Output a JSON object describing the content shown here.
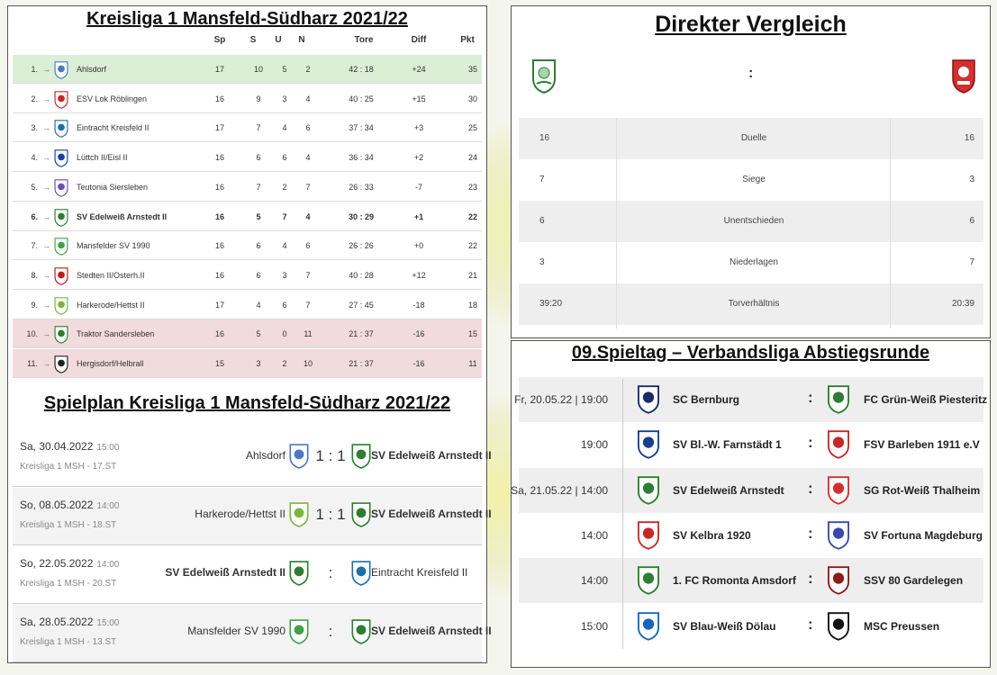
{
  "colors": {
    "promotion_row": "#dbeed6",
    "relegation_row": "#f2dbdd",
    "edelweiss_green": "#2e7d32",
    "thalheim_red": "#d32f2f"
  },
  "league": {
    "title": "Kreisliga 1 Mansfeld-Südharz 2021/22",
    "headers": {
      "sp": "Sp",
      "s": "S",
      "u": "U",
      "n": "N",
      "tore": "Tore",
      "diff": "Diff",
      "pkt": "Pkt"
    },
    "arrow": "→",
    "rows": [
      {
        "pos": "1.",
        "team": "Ahlsdorf",
        "sp": "17",
        "s": "10",
        "u": "5",
        "n": "2",
        "tore": "42 : 18",
        "diff": "+24",
        "pkt": "35",
        "logo": "ahlsdorf-logo",
        "color": "#4a78c2"
      },
      {
        "pos": "2.",
        "team": "ESV Lok Röblingen",
        "sp": "16",
        "s": "9",
        "u": "3",
        "n": "4",
        "tore": "40 : 25",
        "diff": "+15",
        "pkt": "30",
        "logo": "roeblingen-logo",
        "color": "#c62828"
      },
      {
        "pos": "3.",
        "team": "Eintracht Kreisfeld II",
        "sp": "17",
        "s": "7",
        "u": "4",
        "n": "6",
        "tore": "37 : 34",
        "diff": "+3",
        "pkt": "25",
        "logo": "kreisfeld-logo",
        "color": "#1e6fa8"
      },
      {
        "pos": "4.",
        "team": "Lüttch II/Eisl II",
        "sp": "16",
        "s": "6",
        "u": "6",
        "n": "4",
        "tore": "36 : 34",
        "diff": "+2",
        "pkt": "24",
        "logo": "luettch-logo",
        "color": "#1a3fa0"
      },
      {
        "pos": "5.",
        "team": "Teutonia Siersleben",
        "sp": "16",
        "s": "7",
        "u": "2",
        "n": "7",
        "tore": "26 : 33",
        "diff": "-7",
        "pkt": "23",
        "logo": "siersleben-logo",
        "color": "#6a4fb3"
      },
      {
        "pos": "6.",
        "team": "SV Edelweiß Arnstedt II",
        "sp": "16",
        "s": "5",
        "u": "7",
        "n": "4",
        "tore": "30 : 29",
        "diff": "+1",
        "pkt": "22",
        "logo": "edelweiss-logo",
        "color": "#2e7d32"
      },
      {
        "pos": "7.",
        "team": "Mansfelder SV 1990",
        "sp": "16",
        "s": "6",
        "u": "4",
        "n": "6",
        "tore": "26 : 26",
        "diff": "+0",
        "pkt": "22",
        "logo": "mansfelder-logo",
        "color": "#43a047"
      },
      {
        "pos": "8.",
        "team": "Stedten II/Osterh.II",
        "sp": "16",
        "s": "6",
        "u": "3",
        "n": "7",
        "tore": "40 : 28",
        "diff": "+12",
        "pkt": "21",
        "logo": "stedten-logo",
        "color": "#b71c1c"
      },
      {
        "pos": "9.",
        "team": "Harkerode/Hettst II",
        "sp": "17",
        "s": "4",
        "u": "6",
        "n": "7",
        "tore": "27 : 45",
        "diff": "-18",
        "pkt": "18",
        "logo": "harkerode-logo",
        "color": "#7cb342"
      },
      {
        "pos": "10.",
        "team": "Traktor Sandersleben",
        "sp": "16",
        "s": "5",
        "u": "0",
        "n": "11",
        "tore": "21 : 37",
        "diff": "-16",
        "pkt": "15",
        "logo": "sandersleben-logo",
        "color": "#2e7d32"
      },
      {
        "pos": "11.",
        "team": "Hergisdorf/Helbrall",
        "sp": "15",
        "s": "3",
        "u": "2",
        "n": "10",
        "tore": "21 : 37",
        "diff": "-16",
        "pkt": "11",
        "logo": "hergisdorf-logo",
        "color": "#222222"
      }
    ]
  },
  "schedule": {
    "title": "Spielplan Kreisliga 1 Mansfeld-Südharz 2021/22",
    "matches": [
      {
        "date": "Sa, 30.04.2022",
        "time": "15:00",
        "comp": "Kreisliga 1 MSH - 17.ST",
        "home": "Ahlsdorf",
        "score": "1 : 1",
        "away": "SV Edelweiß Arnstedt II",
        "home_color": "#4a78c2",
        "away_color": "#2e7d32"
      },
      {
        "date": "So, 08.05.2022",
        "time": "14:00",
        "comp": "Kreisliga 1 MSH - 18.ST",
        "home": "Harkerode/Hettst II",
        "score": "1 : 1",
        "away": "SV Edelweiß Arnstedt II",
        "home_color": "#7cb342",
        "away_color": "#2e7d32"
      },
      {
        "date": "So, 22.05.2022",
        "time": "14:00",
        "comp": "Kreisliga 1 MSH - 20.ST",
        "home": "SV Edelweiß Arnstedt II",
        "score": ":",
        "away": "Eintracht Kreisfeld II",
        "home_color": "#2e7d32",
        "away_color": "#1e6fa8"
      },
      {
        "date": "Sa, 28.05.2022",
        "time": "15:00",
        "comp": "Kreisliga 1 MSH - 13.ST",
        "home": "Mansfelder SV 1990",
        "score": ":",
        "away": "SV Edelweiß Arnstedt II",
        "home_color": "#43a047",
        "away_color": "#2e7d32"
      }
    ]
  },
  "direct": {
    "title": "Direkter Vergleich",
    "colon": ":",
    "home_crest": "edelweiss-crest",
    "away_crest": "thalheim-crest",
    "rows": [
      {
        "left": "16",
        "label": "Duelle",
        "right": "16"
      },
      {
        "left": "7",
        "label": "Siege",
        "right": "3"
      },
      {
        "left": "6",
        "label": "Unentschieden",
        "right": "6"
      },
      {
        "left": "3",
        "label": "Niederlagen",
        "right": "7"
      },
      {
        "left": "39:20",
        "label": "Torverhältnis",
        "right": "20:39"
      }
    ]
  },
  "matchday": {
    "title": "09.Spieltag – Verbandsliga Abstiegsrunde",
    "colon": ":",
    "matches": [
      {
        "time": "Fr, 20.05.22 | 19:00",
        "home": "SC Bernburg",
        "away": "FC Grün-Weiß Piesteritz",
        "home_color": "#1a2a6c",
        "away_color": "#2e7d32"
      },
      {
        "time": "19:00",
        "home": "SV Bl.-W. Farnstädt 1",
        "away": "FSV Barleben 1911 e.V",
        "home_color": "#1a3f8a",
        "away_color": "#c62828"
      },
      {
        "time": "Sa, 21.05.22 | 14:00",
        "home": "SV Edelweiß Arnstedt",
        "away": "SG Rot-Weiß Thalheim",
        "home_color": "#2e7d32",
        "away_color": "#d32f2f"
      },
      {
        "time": "14:00",
        "home": "SV Kelbra 1920",
        "away": "SV Fortuna Magdeburg",
        "home_color": "#c62828",
        "away_color": "#3949ab"
      },
      {
        "time": "14:00",
        "home": "1. FC Romonta Amsdorf",
        "away": "SSV 80 Gardelegen",
        "home_color": "#2e7d32",
        "away_color": "#8d1b1b"
      },
      {
        "time": "15:00",
        "home": "SV Blau-Weiß Dölau",
        "away": "MSC Preussen",
        "home_color": "#1565c0",
        "away_color": "#111111"
      }
    ]
  }
}
